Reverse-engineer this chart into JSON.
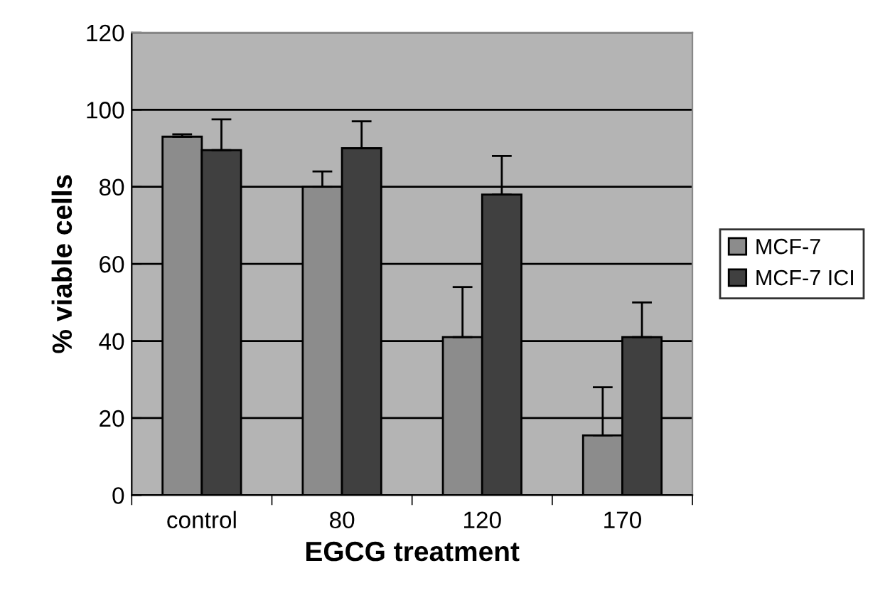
{
  "chart_data": {
    "type": "bar",
    "xlabel": "EGCG treatment",
    "ylabel": "% viable cells",
    "categories": [
      "control",
      "80",
      "120",
      "170"
    ],
    "series": [
      {
        "name": "MCF-7",
        "color": "#8c8c8c",
        "values": [
          93,
          80,
          41,
          15.5
        ],
        "errors": [
          [
            93,
            93.6
          ],
          [
            80,
            84
          ],
          [
            41,
            54
          ],
          [
            15.5,
            28
          ]
        ]
      },
      {
        "name": "MCF-7 ICI",
        "color": "#404040",
        "values": [
          89.5,
          90,
          78,
          41
        ],
        "errors": [
          [
            89.5,
            97.5
          ],
          [
            90,
            97
          ],
          [
            78,
            88
          ],
          [
            41,
            50
          ]
        ]
      }
    ],
    "ylim": [
      0,
      120
    ],
    "yticks": [
      0,
      20,
      40,
      60,
      80,
      100,
      120
    ],
    "grid": "y",
    "legend": "right"
  }
}
